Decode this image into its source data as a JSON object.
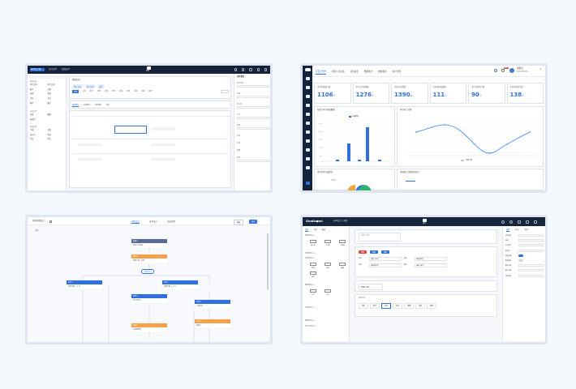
{
  "form_designer": {
    "header": {
      "title": "表单设计器",
      "btn1": "运行表单",
      "btn2": "卸载表单",
      "center": "表单"
    },
    "left_groups": [
      {
        "title": "基础控件",
        "items": [
          "单行文本",
          "多行文本",
          "数字",
          "日期",
          "选择",
          "多选",
          "评分",
          "开关",
          "附件",
          "图片"
        ]
      },
      {
        "title": "布局控件",
        "items": [
          "分组",
          "栅格",
          "标签页"
        ]
      },
      {
        "title": "高级控件",
        "items": [
          "子表",
          "关联",
          "流水号",
          "地址",
          "定位",
          "签名"
        ]
      }
    ],
    "canvas": {
      "section": "基础信息",
      "chips": [
        "单行文本",
        "多行文本",
        "数字"
      ],
      "tabs": [
        "全部",
        "文本",
        "数字",
        "日期",
        "选择",
        "附件",
        "高级",
        "布局",
        "关联",
        "流程",
        "其他"
      ],
      "subtabs": [
        "基础属性",
        "高级属性",
        "校验规则",
        "事件"
      ]
    },
    "right_panel": {
      "title": "控件属性",
      "rows": [
        "控件名称",
        "标题",
        "默认值",
        "占位",
        "宽度",
        "必填",
        "只读",
        "隐藏",
        "校验"
      ]
    }
  },
  "dashboard": {
    "tabs": [
      "首页工作台",
      "销售人员业绩",
      "项目总览",
      "数据统计",
      "数据报表",
      "客户管理"
    ],
    "user": {
      "name": "运维员",
      "role": "系统运维管理员",
      "badge": "99+"
    },
    "kpis": [
      {
        "label": "本月新增客户数",
        "value": "1106",
        "unit": "个"
      },
      {
        "label": "本月工单处理数",
        "value": "1276",
        "unit": "个"
      },
      {
        "label": "本周访问数量",
        "value": "1390",
        "unit": "次"
      },
      {
        "label": "待处理审批数量",
        "value": "111",
        "unit": "个"
      },
      {
        "label": "本月活跃用户数",
        "value": "90",
        "unit": "个"
      },
      {
        "label": "本月新增用户数",
        "value": "138",
        "unit": "个"
      }
    ],
    "bar_chart": {
      "title": "各部门本月业绩数量",
      "legend": "业绩数量"
    },
    "line_chart": {
      "title": "本月员工活跃",
      "legend": "活跃人数"
    },
    "pie_title": "本月任务完成情况",
    "bottom_right_title": "本周用户活跃情况统计",
    "pie_label": "完成率"
  },
  "workflow": {
    "header": {
      "title": "审批流程设计",
      "tabs": [
        "流程设计",
        "表单设计",
        "高级设置"
      ],
      "btn_preview": "预览",
      "btn_publish": "发布"
    },
    "left_label": "流程",
    "nodes": {
      "start": "发起人",
      "start_body": "所有人可发起",
      "approver1": "审批人",
      "approver1_body": "直属上级 · 会签",
      "branch": "条件分支",
      "cond1": "条件1",
      "cond1_body": "请假天数 > 3 天",
      "cond2": "条件2",
      "cond2_body": "请假天数 ≤ 3 天",
      "approver2": "审批人",
      "approver2_body": "部门负责人",
      "cc": "抄送人",
      "cc_body": "人事专员",
      "approver3": "审批人",
      "approver3_body": "总经理审批",
      "notify": "抄送人",
      "notify_body": "发起人"
    }
  },
  "studio": {
    "header": {
      "logo": "Studio●ml",
      "title": "表单设计 | 预览",
      "center": "设计"
    },
    "left_tabs": [
      "组件",
      "大纲",
      "数据"
    ],
    "left_groups": [
      "通用组件(8)",
      "表单组件(12)",
      "布局组件(6)",
      "数据展示(9)",
      "业务组件(5)",
      "图表组件(4)",
      "自定义组件(3)"
    ],
    "left_items": [
      "输入框",
      "文本域",
      "下拉框",
      "按钮",
      "表格",
      "弹窗",
      "图片",
      "文字",
      "卡片"
    ],
    "canvas": {
      "field1": "请输入内容",
      "buttons": [
        "新增",
        "编辑",
        "删除"
      ],
      "table_rows": [
        "名称",
        "类型",
        "状态",
        "备注"
      ],
      "table_vals": [
        "请输入名称",
        "请选择类型",
        "请选择状态",
        "请输入备注"
      ],
      "single": "普通文本框",
      "section": "数据列表",
      "cols": [
        "姓名",
        "部门",
        "岗位",
        "电话",
        "邮箱",
        "状态",
        "操作"
      ]
    },
    "right_tabs": [
      "属性",
      "样式",
      "事件"
    ],
    "right_rows": [
      "组件名称",
      "标题",
      "占位提示",
      "默认值",
      "是否必填",
      "是否禁用",
      "最大长度",
      "最小长度",
      "校验规则"
    ]
  }
}
